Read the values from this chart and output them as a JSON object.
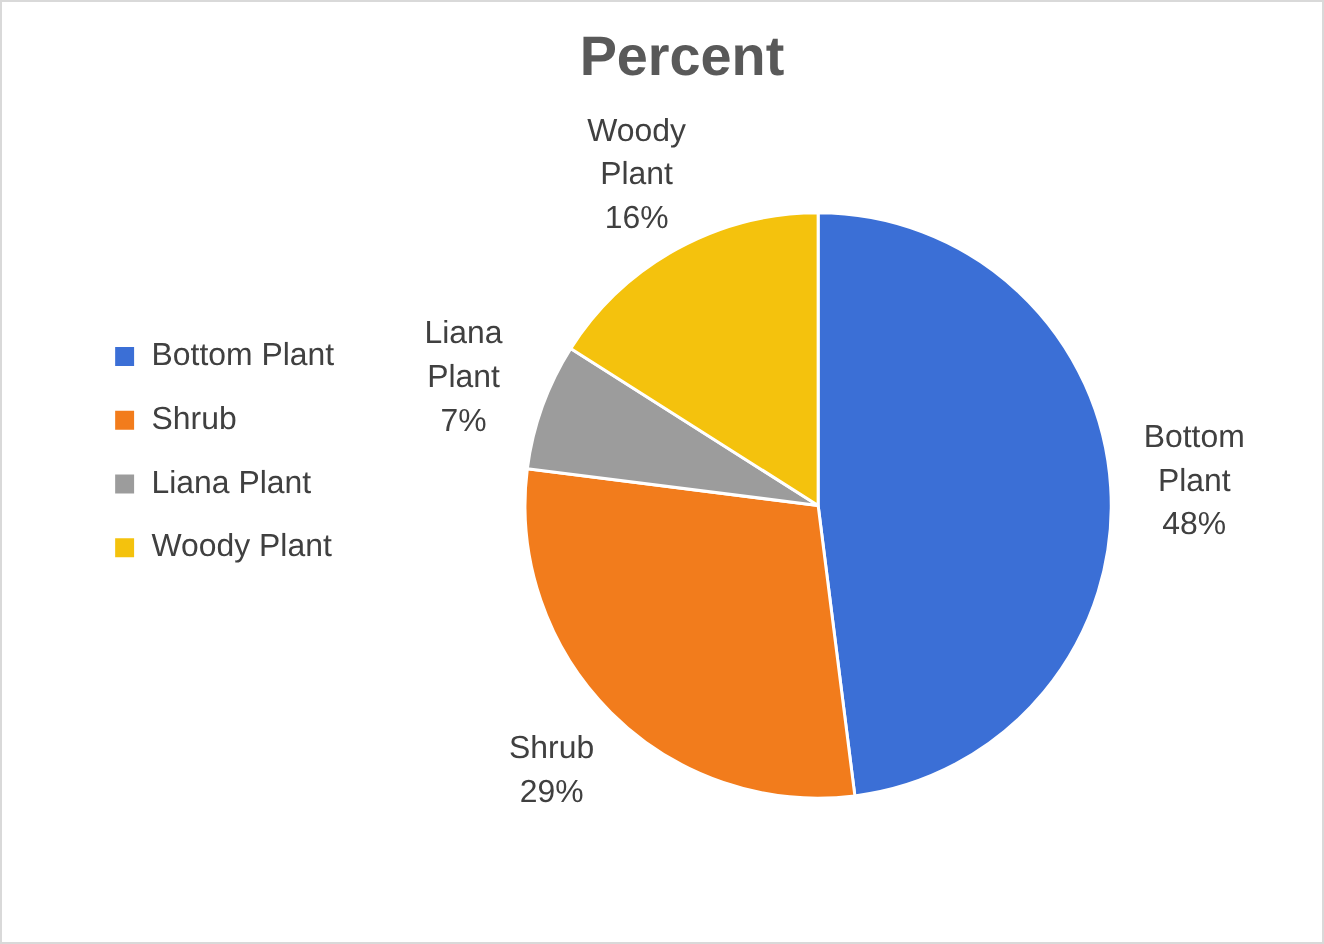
{
  "chart_data": {
    "type": "pie",
    "title": "Percent",
    "categories": [
      "Bottom Plant",
      "Shrub",
      "Liana Plant",
      "Woody Plant"
    ],
    "values": [
      48,
      29,
      7,
      16
    ],
    "value_labels": [
      "48%",
      "29%",
      "7%",
      "16%"
    ],
    "colors": [
      "#3b6fd6",
      "#f27c1c",
      "#9c9c9c",
      "#f4c20d"
    ],
    "legend": "left"
  }
}
